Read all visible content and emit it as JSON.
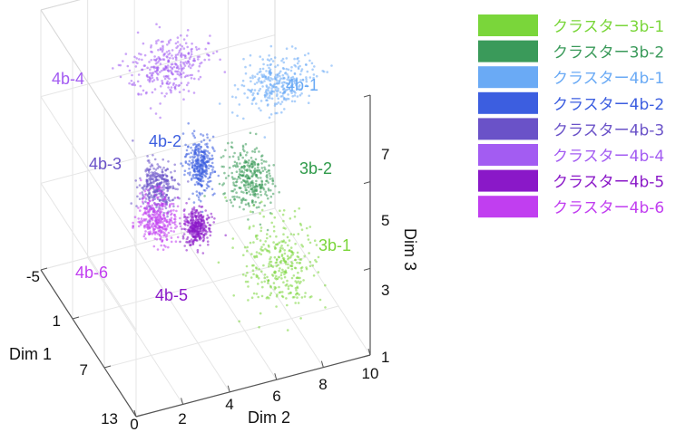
{
  "chart_data": {
    "type": "scatter",
    "projection": "3d",
    "axes": {
      "x": {
        "label": "Dim 1",
        "range": [
          -5,
          13
        ],
        "ticks": [
          "-5",
          "1",
          "7",
          "13"
        ]
      },
      "y": {
        "label": "Dim 2",
        "range": [
          0,
          10
        ],
        "ticks": [
          "0",
          "2",
          "4",
          "6",
          "8",
          "10"
        ]
      },
      "z": {
        "label": "Dim 3",
        "range": [
          1,
          7
        ],
        "ticks": [
          "1",
          "3",
          "5",
          "7"
        ]
      }
    },
    "grid": true,
    "legend_position": "top-right",
    "series": [
      {
        "name": "クラスター3b-1",
        "label": "3b-1",
        "color": "#7ad63a",
        "center": [
          10.0,
          6.8,
          3.0
        ],
        "spread": [
          3.2,
          1.4,
          0.9
        ]
      },
      {
        "name": "クラスター3b-2",
        "label": "3b-2",
        "color": "#3a9a5a",
        "center": [
          8.5,
          5.9,
          4.8
        ],
        "spread": [
          2.2,
          0.9,
          0.6
        ]
      },
      {
        "name": "クラスター4b-1",
        "label": "4b-1",
        "color": "#6aaaf5",
        "center": [
          2.0,
          8.5,
          5.4
        ],
        "spread": [
          1.6,
          1.5,
          0.5
        ]
      },
      {
        "name": "クラスター4b-2",
        "label": "4b-2",
        "color": "#3c5ee0",
        "center": [
          4.8,
          4.6,
          4.6
        ],
        "spread": [
          1.2,
          0.5,
          0.6
        ]
      },
      {
        "name": "クラスター4b-3",
        "label": "4b-3",
        "color": "#6a52c8",
        "center": [
          5.5,
          2.6,
          4.5
        ],
        "spread": [
          1.5,
          0.7,
          0.5
        ]
      },
      {
        "name": "クラスター4b-4",
        "label": "4b-4",
        "color": "#a35cf2",
        "center": [
          -1.0,
          4.6,
          5.8
        ],
        "spread": [
          2.0,
          1.6,
          0.5
        ]
      },
      {
        "name": "クラスター4b-5",
        "label": "4b-5",
        "color": "#8a18c8",
        "center": [
          8.5,
          3.6,
          4.0
        ],
        "spread": [
          0.8,
          0.5,
          0.4
        ]
      },
      {
        "name": "クラスター4b-6",
        "label": "4b-6",
        "color": "#c13ef0",
        "center": [
          6.5,
          2.4,
          4.0
        ],
        "spread": [
          1.6,
          0.7,
          0.5
        ]
      }
    ]
  }
}
